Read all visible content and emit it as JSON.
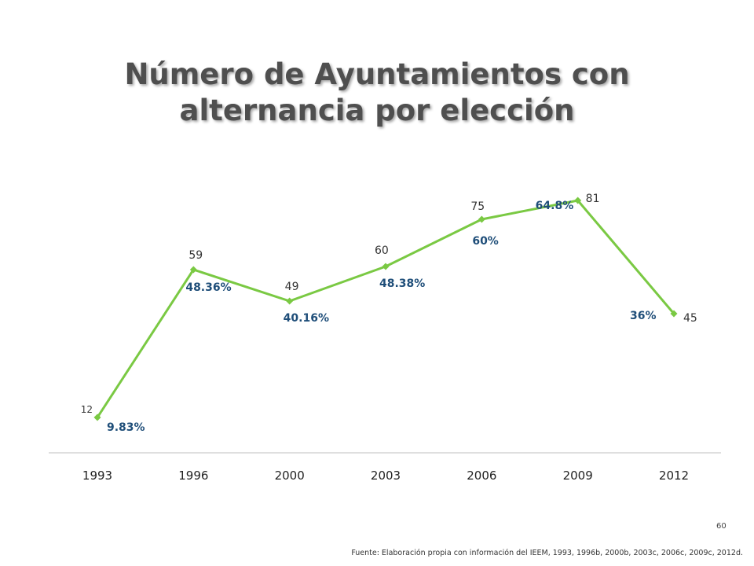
{
  "title": "Número de Ayuntamientos con alternancia por elección",
  "page_number": "60",
  "source": "Fuente: Elaboración propia con información del IEEM, 1993, 1996b, 2000b, 2003c, 2006c, 2009c, 2012d.",
  "colors": {
    "line": "#7ac943",
    "percent_label": "#1f4e79",
    "value_label": "#333333",
    "axis": "#bfbfbf"
  },
  "chart_data": {
    "type": "line",
    "categories": [
      "1993",
      "1996",
      "2000",
      "2003",
      "2006",
      "2009",
      "2012"
    ],
    "values": [
      12,
      59,
      49,
      60,
      75,
      81,
      45
    ],
    "value_labels": [
      "12",
      "59",
      "49",
      "60",
      "75",
      "81",
      "45"
    ],
    "percent_labels": [
      "9.83%",
      "48.36%",
      "40.16%",
      "48.38%",
      "60%",
      "64.8%",
      "36%"
    ],
    "percent_values": [
      9.83,
      48.36,
      40.16,
      48.38,
      60,
      64.8,
      36
    ],
    "title": "Número de Ayuntamientos con alternancia por elección",
    "xlabel": "",
    "ylabel": "",
    "grid": false,
    "legend": "none"
  }
}
